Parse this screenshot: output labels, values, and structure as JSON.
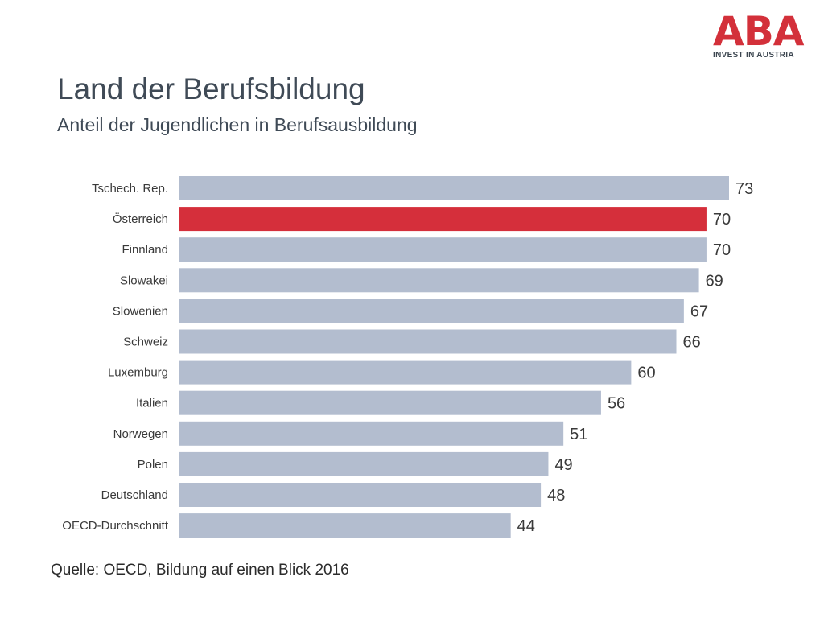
{
  "logo": {
    "mark": "ABA",
    "tagline": "INVEST IN AUSTRIA"
  },
  "header": {
    "title": "Land der Berufsbildung",
    "subtitle": "Anteil der Jugendlichen in Berufsausbildung"
  },
  "footer": {
    "source": "Quelle: OECD, Bildung auf einen Blick 2016"
  },
  "colors": {
    "bar_default": "#b3bdcf",
    "bar_highlight": "#d52f3b",
    "label_text": "#3a3a3a"
  },
  "chart_data": {
    "type": "bar",
    "orientation": "horizontal",
    "categories": [
      "Tschech. Rep.",
      "Österreich",
      "Finnland",
      "Slowakei",
      "Slowenien",
      "Schweiz",
      "Luxemburg",
      "Italien",
      "Norwegen",
      "Polen",
      "Deutschland",
      "OECD-Durchschnitt"
    ],
    "values": [
      73,
      70,
      70,
      69,
      67,
      66,
      60,
      56,
      51,
      49,
      48,
      44
    ],
    "highlight": "Österreich",
    "xlim": [
      0,
      73
    ],
    "grid": false,
    "legend": "none",
    "data_labels": true
  }
}
